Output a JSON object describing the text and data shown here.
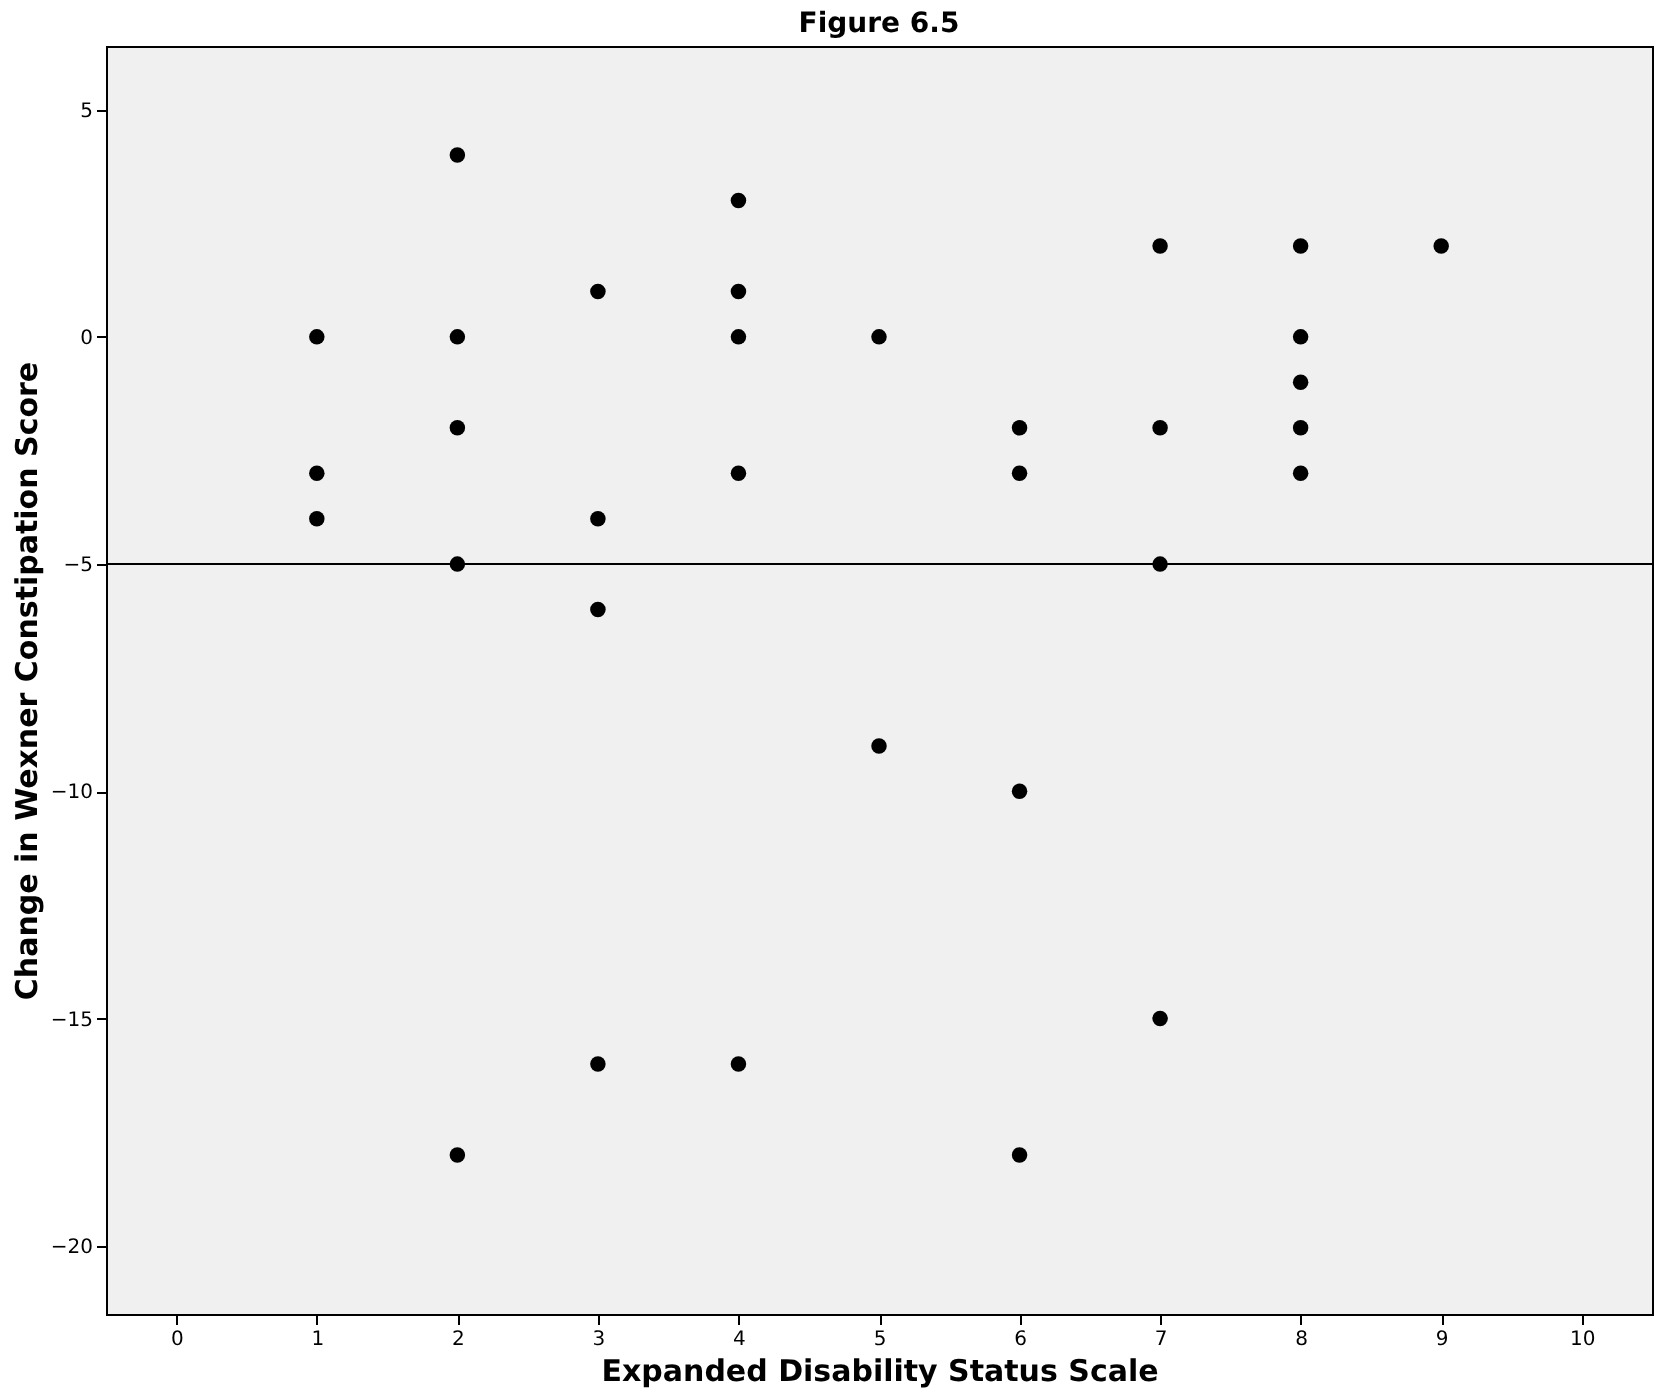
{
  "chart_data": {
    "type": "scatter",
    "title": "Figure 6.5",
    "xlabel": "Expanded Disability Status Scale",
    "ylabel": "Change in Wexner Constipation Score",
    "x": [
      1,
      1,
      1,
      2,
      2,
      2,
      2,
      2,
      3,
      3,
      3,
      3,
      4,
      4,
      4,
      4,
      4,
      5,
      5,
      6,
      6,
      6,
      6,
      7,
      7,
      7,
      7,
      8,
      8,
      8,
      8,
      8,
      9
    ],
    "values": [
      0,
      -3,
      -4,
      4,
      0,
      -2,
      -5,
      -18,
      1,
      -4,
      -6,
      -16,
      3,
      1,
      0,
      -3,
      -16,
      0,
      -9,
      -2,
      -3,
      -10,
      -18,
      2,
      -2,
      -5,
      -15,
      2,
      0,
      -1,
      -2,
      -3,
      2
    ],
    "color": "#000000",
    "marker": "circle",
    "xlim": [
      -0.5,
      10.5
    ],
    "xticks": [
      0,
      1,
      2,
      3,
      4,
      5,
      6,
      7,
      8,
      9,
      10
    ],
    "ylim": [
      -21.5,
      6.4
    ],
    "yticks": [
      -20,
      -15,
      -10,
      -5,
      0,
      5
    ],
    "ref_lines": [
      {
        "axis": "y",
        "value": -5,
        "color": "#000000"
      }
    ],
    "grid": false
  }
}
